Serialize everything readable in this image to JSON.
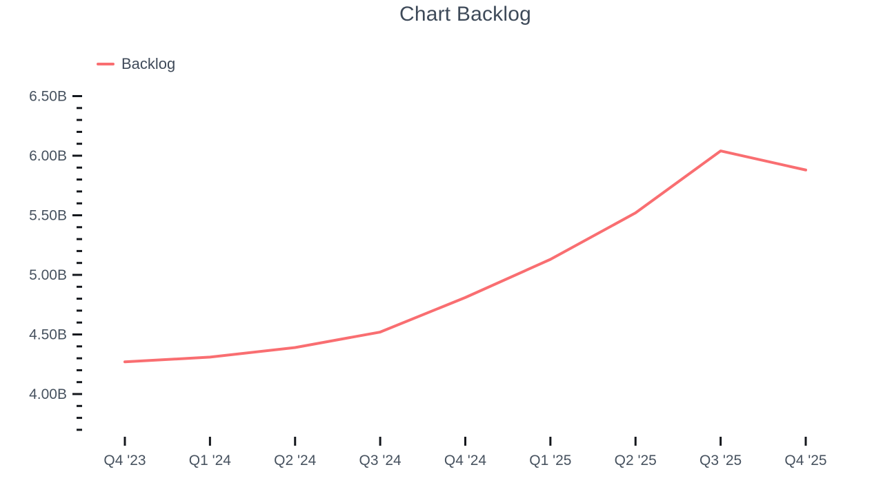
{
  "chart_data": {
    "type": "line",
    "title": "Chart Backlog",
    "unit": "B",
    "categories": [
      "Q4 '23",
      "Q1 '24",
      "Q2 '24",
      "Q3 '24",
      "Q4 '24",
      "Q1 '25",
      "Q2 '25",
      "Q3 '25",
      "Q4 '25"
    ],
    "series": [
      {
        "name": "Backlog",
        "color": "#f96e71",
        "values": [
          4.27,
          4.31,
          4.39,
          4.52,
          4.81,
          5.13,
          5.52,
          6.04,
          5.88
        ]
      }
    ],
    "xlabel": "",
    "ylabel": "",
    "ylim": [
      3.7,
      6.5
    ],
    "y_major_ticks": [
      4.0,
      4.5,
      5.0,
      5.5,
      6.0,
      6.5
    ],
    "y_major_tick_labels": [
      "4.00B",
      "4.50B",
      "5.00B",
      "5.50B",
      "6.00B",
      "6.50B"
    ],
    "y_minor_step": 0.1,
    "grid": false,
    "legend_position": "top-left",
    "axis_tick_color": "#14171c",
    "label_color": "#47525f",
    "title_color": "#3e4a59"
  }
}
